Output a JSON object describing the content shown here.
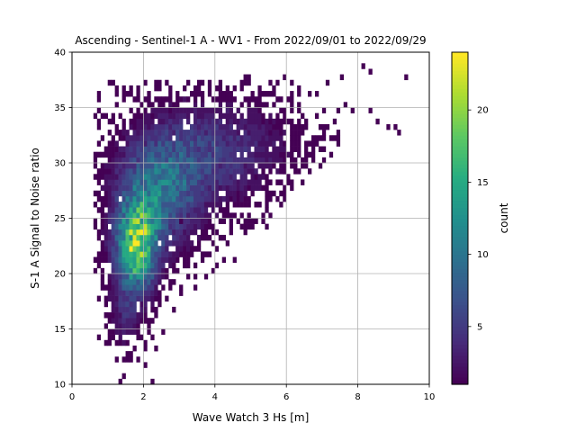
{
  "chart_data": {
    "type": "heatmap",
    "title": "Ascending - Sentinel-1 A - WV1 - From 2022/09/01 to 2022/09/29",
    "xlabel": "Wave Watch 3 Hs [m]",
    "ylabel": "S-1 A Signal to Noise ratio",
    "xlim": [
      0,
      10
    ],
    "ylim": [
      10,
      40
    ],
    "xticks": [
      "0",
      "2",
      "4",
      "6",
      "8",
      "10"
    ],
    "yticks": [
      "10",
      "15",
      "20",
      "25",
      "30",
      "35",
      "40"
    ],
    "grid": true,
    "bin_width_x": 0.1,
    "bin_width_y": 0.5,
    "colormap": "viridis",
    "colorbar": {
      "label": "count",
      "range": [
        1,
        24
      ],
      "ticks": [
        "5",
        "10",
        "15",
        "20"
      ]
    },
    "density_clusters": [
      {
        "x": 1.8,
        "y": 22.5,
        "sx": 0.38,
        "sy": 2.6,
        "peak": 19
      },
      {
        "x": 2.4,
        "y": 27.5,
        "sx": 0.75,
        "sy": 3.2,
        "peak": 9
      },
      {
        "x": 3.6,
        "y": 30.5,
        "sx": 1.1,
        "sy": 3.0,
        "peak": 4
      },
      {
        "x": 5.0,
        "y": 32.0,
        "sx": 1.3,
        "sy": 2.6,
        "peak": 1.6
      },
      {
        "x": 1.5,
        "y": 16.5,
        "sx": 0.3,
        "sy": 2.2,
        "peak": 3
      }
    ],
    "sparse_bins": [
      [
        9.3,
        37.5
      ],
      [
        8.1,
        38.5
      ],
      [
        8.3,
        38.0
      ],
      [
        7.5,
        37.5
      ],
      [
        7.6,
        35.0
      ],
      [
        8.8,
        33.0
      ],
      [
        9.0,
        33.0
      ],
      [
        9.1,
        32.5
      ],
      [
        8.5,
        33.5
      ],
      [
        6.1,
        30.0
      ],
      [
        7.8,
        34.5
      ],
      [
        8.3,
        34.5
      ],
      [
        1.3,
        10.0
      ],
      [
        2.2,
        10.0
      ],
      [
        0.7,
        14.0
      ],
      [
        0.9,
        16.0
      ],
      [
        2.5,
        14.5
      ],
      [
        3.0,
        24.5
      ],
      [
        4.5,
        21.0
      ],
      [
        5.5,
        25.0
      ],
      [
        5.9,
        29.0
      ],
      [
        6.2,
        29.5
      ],
      [
        4.8,
        23.5
      ],
      [
        5.4,
        24.0
      ],
      [
        3.4,
        18.5
      ],
      [
        2.8,
        16.5
      ],
      [
        2.3,
        13.0
      ],
      [
        2.0,
        11.5
      ]
    ]
  }
}
